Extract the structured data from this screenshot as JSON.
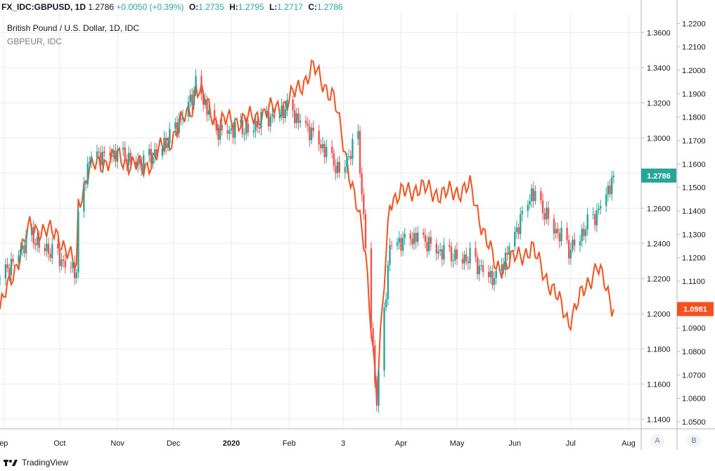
{
  "header": {
    "symbol": "FX_IDC:GBPUSD, 1D",
    "last": "1.2786",
    "change": "+0.0050 (+0.39%)",
    "o_label": "O:",
    "o": "1.2735",
    "h_label": "H:",
    "h": "1.2795",
    "l_label": "L:",
    "l": "1.2717",
    "c_label": "C:",
    "c": "1.2786"
  },
  "series_title": "British Pound / U.S. Dollar, 1D, IDC",
  "compare_title": "GBPEUR, IDC",
  "footer_brand": "TradingView",
  "axis_buttons": {
    "a": "A",
    "b": "B"
  },
  "colors": {
    "up": "#26a69a",
    "down": "#ef5350",
    "compare": "#f4511e",
    "grid": "#e8eaef"
  },
  "chart_data": {
    "type": "line",
    "x_ticks": [
      "ep",
      "Oct",
      "Nov",
      "Dec",
      "2020",
      "Feb",
      "3",
      "Apr",
      "May",
      "Jun",
      "Jul",
      "Aug"
    ],
    "left_axis_ticks": [
      "1.3600",
      "1.3400",
      "1.3200",
      "1.3000",
      "1.2800",
      "1.2600",
      "1.2400",
      "1.2200",
      "1.2000",
      "1.1800",
      "1.1600",
      "1.1400"
    ],
    "right_axis_ticks": [
      "1.2200",
      "1.2100",
      "1.2000",
      "1.1900",
      "1.1800",
      "1.1700",
      "1.1600",
      "1.1500",
      "1.1400",
      "1.1300",
      "1.1200",
      "1.1100",
      "1.1000",
      "1.0900",
      "1.0800",
      "1.0700",
      "1.0600",
      "1.0500"
    ],
    "ylim_left": [
      1.1345,
      1.3705
    ],
    "ylim_right": [
      1.047,
      1.224
    ],
    "x_range": [
      "2019-08-30",
      "2020-08-07"
    ],
    "series": [
      {
        "name": "GBPUSD",
        "style": "candlestick",
        "axis": "left",
        "x": [
          "2019-08-30",
          "2019-09-15",
          "2019-09-30",
          "2019-10-10",
          "2019-10-11",
          "2019-10-17",
          "2019-10-31",
          "2019-11-15",
          "2019-11-30",
          "2019-12-12",
          "2019-12-13",
          "2019-12-24",
          "2020-01-10",
          "2020-01-31",
          "2020-02-14",
          "2020-02-28",
          "2020-03-09",
          "2020-03-13",
          "2020-03-19",
          "2020-03-26",
          "2020-04-10",
          "2020-04-24",
          "2020-05-08",
          "2020-05-22",
          "2020-06-10",
          "2020-06-30",
          "2020-07-15",
          "2020-07-24"
        ],
        "close": [
          1.22,
          1.245,
          1.233,
          1.225,
          1.255,
          1.29,
          1.292,
          1.286,
          1.302,
          1.327,
          1.333,
          1.305,
          1.306,
          1.318,
          1.303,
          1.282,
          1.3,
          1.24,
          1.15,
          1.24,
          1.245,
          1.235,
          1.232,
          1.22,
          1.27,
          1.237,
          1.258,
          1.2786
        ]
      },
      {
        "name": "GBPEUR",
        "axis": "right",
        "x": [
          "2019-08-30",
          "2019-09-15",
          "2019-09-30",
          "2019-10-10",
          "2019-10-11",
          "2019-10-17",
          "2019-10-31",
          "2019-11-15",
          "2019-11-30",
          "2019-12-12",
          "2019-12-13",
          "2019-12-24",
          "2020-01-10",
          "2020-01-31",
          "2020-02-14",
          "2020-02-25",
          "2020-03-09",
          "2020-03-13",
          "2020-03-19",
          "2020-03-26",
          "2020-04-10",
          "2020-04-24",
          "2020-05-08",
          "2020-05-22",
          "2020-06-10",
          "2020-06-30",
          "2020-07-15",
          "2020-07-24"
        ],
        "values": [
          1.098,
          1.133,
          1.13,
          1.115,
          1.143,
          1.158,
          1.163,
          1.158,
          1.171,
          1.186,
          1.194,
          1.178,
          1.179,
          1.186,
          1.201,
          1.188,
          1.139,
          1.122,
          1.061,
          1.145,
          1.15,
          1.147,
          1.15,
          1.115,
          1.124,
          1.093,
          1.117,
          1.0981
        ]
      }
    ],
    "price_labels": {
      "left": "1.2786",
      "right": "1.0981"
    }
  }
}
